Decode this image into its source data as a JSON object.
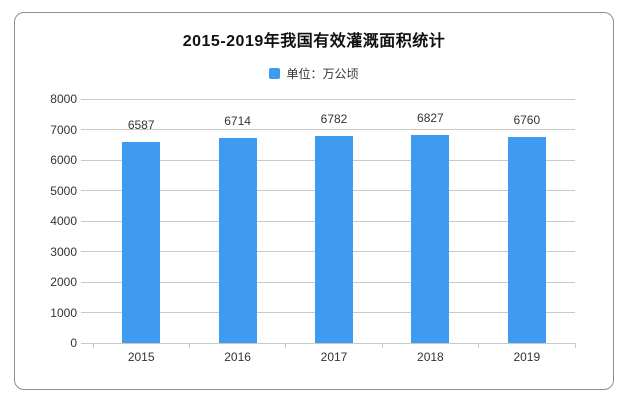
{
  "chart_data": {
    "type": "bar",
    "title": "2015-2019年我国有效灌溉面积统计",
    "legend_label": "单位：万公顷",
    "legend_position": "top-center",
    "categories": [
      "2015",
      "2016",
      "2017",
      "2018",
      "2019"
    ],
    "values": [
      6587,
      6714,
      6782,
      6827,
      6760
    ],
    "data_labels_visible": true,
    "xlabel": "",
    "ylabel": "",
    "ylim": [
      0,
      8000
    ],
    "yticks": [
      0,
      1000,
      2000,
      3000,
      4000,
      5000,
      6000,
      7000,
      8000
    ],
    "grid": true,
    "bar_color": "#3e9bf0"
  },
  "colors": {
    "bar": "#3e9bf0",
    "gridline": "#c9c9c9",
    "axis_label": "#333333",
    "title_text": "#111111",
    "card_border": "#8f8f8f",
    "background": "#ffffff"
  }
}
